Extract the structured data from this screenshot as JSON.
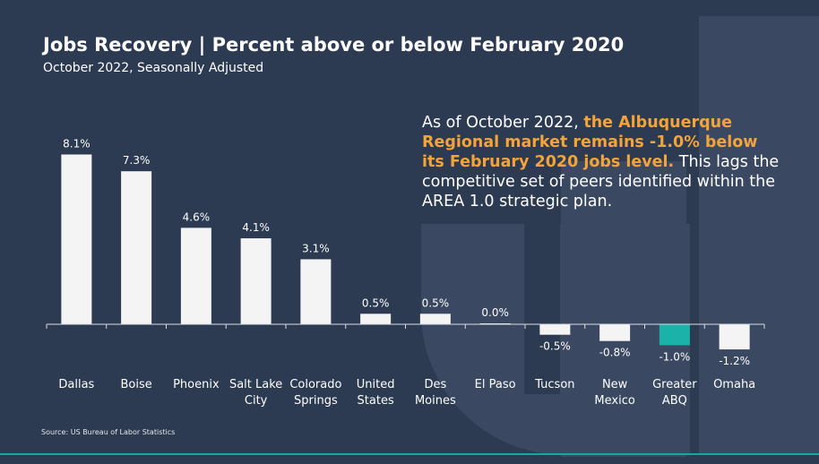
{
  "title": "Jobs Recovery | Percent above or below February 2020",
  "subtitle": "October 2022, Seasonally Adjusted",
  "callout": {
    "text_before": "As of October 2022, ",
    "highlight": "the Albuquerque Regional market remains -1.0% below its February 2020 jobs level.",
    "text_after": " This lags the competitive set of peers identified within the AREA 1.0 strategic plan."
  },
  "source": "Source: US Bureau of Labor Statistics",
  "colors": {
    "background": "#2c3a52",
    "bar": "#f4f4f4",
    "highlight_bar": "#1bb3a9",
    "callout_highlight": "#f2a33a"
  },
  "chart_data": {
    "type": "bar",
    "categories": [
      [
        "Dallas"
      ],
      [
        "Boise"
      ],
      [
        "Phoenix"
      ],
      [
        "Salt Lake",
        "City"
      ],
      [
        "Colorado",
        "Springs"
      ],
      [
        "United",
        "States"
      ],
      [
        "Des",
        "Moines"
      ],
      [
        "El Paso"
      ],
      [
        "Tucson"
      ],
      [
        "New",
        "Mexico"
      ],
      [
        "Greater",
        "ABQ"
      ],
      [
        "Omaha"
      ]
    ],
    "values": [
      8.1,
      7.3,
      4.6,
      4.1,
      3.1,
      0.5,
      0.5,
      0.0,
      -0.5,
      -0.8,
      -1.0,
      -1.2
    ],
    "value_labels": [
      "8.1%",
      "7.3%",
      "4.6%",
      "4.1%",
      "3.1%",
      "0.5%",
      "0.5%",
      "0.0%",
      "-0.5%",
      "-0.8%",
      "-1.0%",
      "-1.2%"
    ],
    "highlight_index": 10,
    "ylim": [
      -1.2,
      8.1
    ],
    "grid": false,
    "legend": "none"
  }
}
